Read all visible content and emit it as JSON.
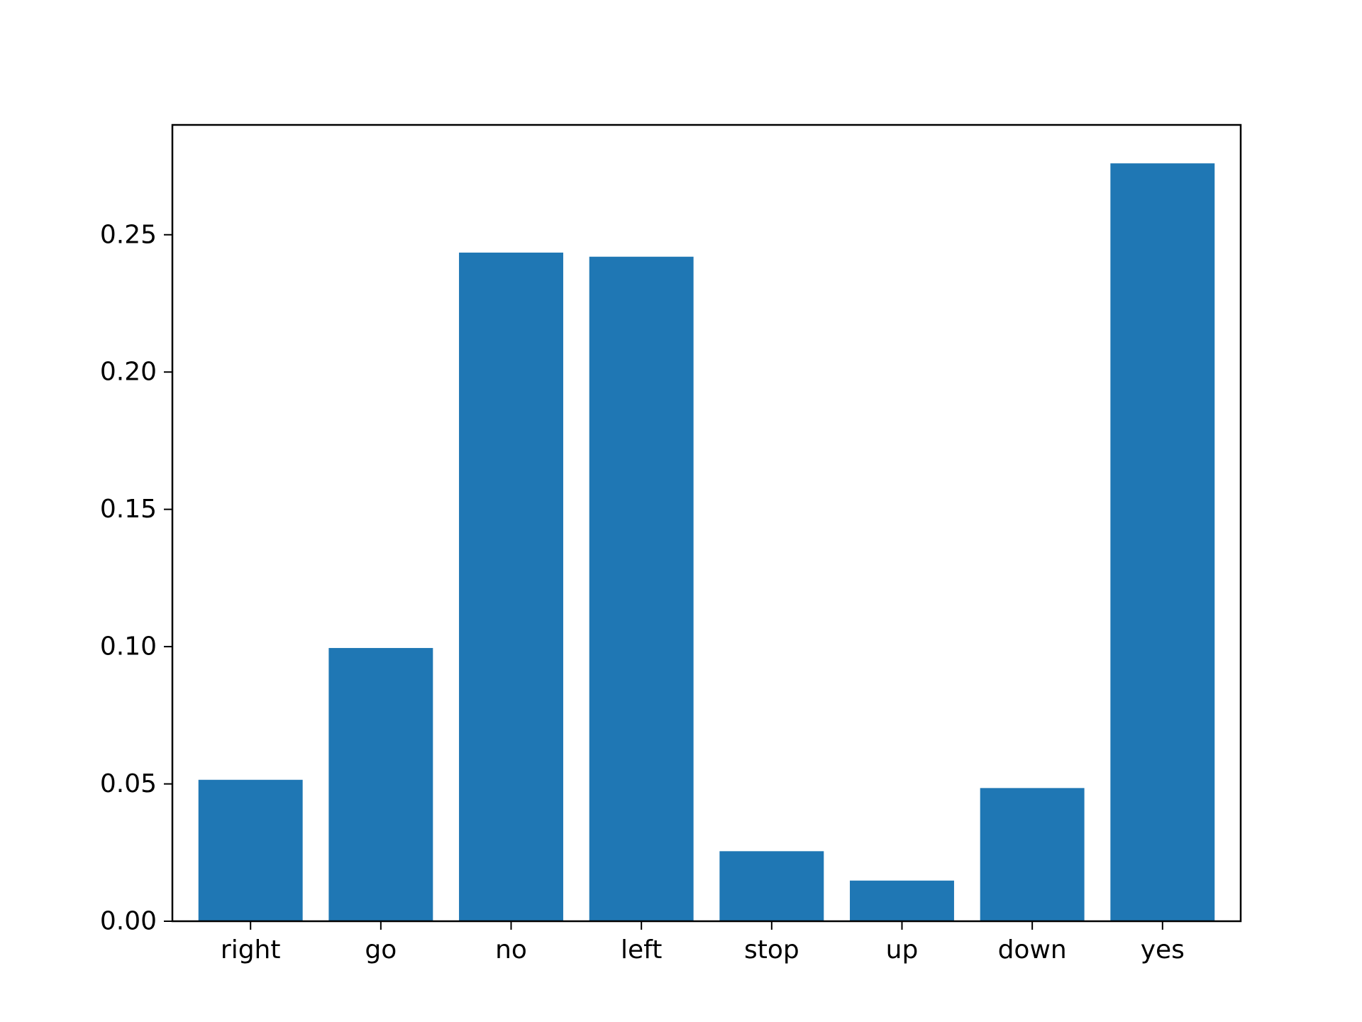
{
  "chart_data": {
    "type": "bar",
    "categories": [
      "right",
      "go",
      "no",
      "left",
      "stop",
      "up",
      "down",
      "yes"
    ],
    "values": [
      0.0515,
      0.0995,
      0.2435,
      0.242,
      0.0255,
      0.0148,
      0.0485,
      0.276
    ],
    "yticks": [
      "0.00",
      "0.05",
      "0.10",
      "0.15",
      "0.20",
      "0.25"
    ],
    "ylim": [
      0,
      0.29
    ],
    "xlabel": "",
    "ylabel": "",
    "title": "",
    "grid": false,
    "legend": "none",
    "bar_color": "#1f77b4"
  }
}
